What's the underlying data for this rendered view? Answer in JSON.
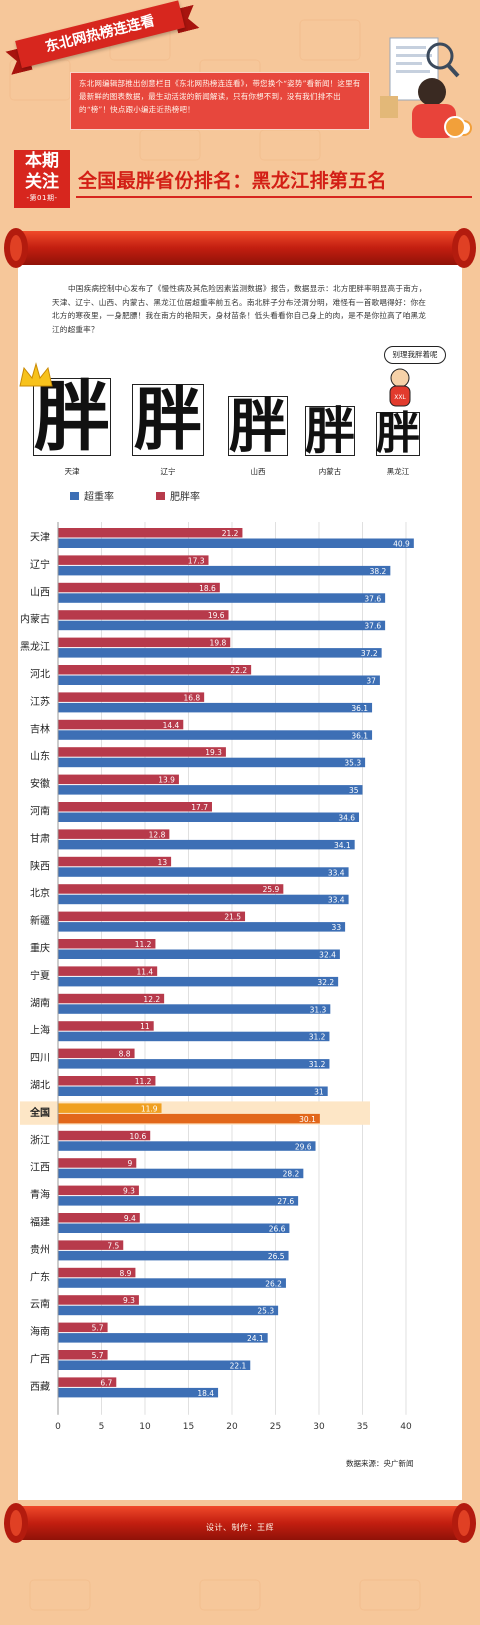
{
  "ribbon": {
    "label": "东北网热榜连连看"
  },
  "intro": {
    "text": "东北网编辑部推出创意栏目《东北网热榜连连看》，带您换个“姿势”看新闻！这里有最新鲜的图表数据，最生动活泼的新闻解读，只有你想不到，没有我们排不出的“榜”！快点跟小编走近热榜吧！"
  },
  "badge": {
    "line1": "本期",
    "line2": "关注",
    "issue": "-第01期-"
  },
  "headline": "全国最胖省份排名：黑龙江排第五名",
  "article": {
    "text": "中国疾病控制中心发布了《慢性病及其危险因素监测数据》报告，数据显示：北方肥胖率明显高于南方，天津、辽宁、山西、内蒙古、黑龙江位居超重率前五名。南北胖子分布泾渭分明，难怪有一首歌唱得好：你在北方的寒夜里，一身肥膘！我在南方的艳阳天，身材苗条！低头看看你自己身上的肉，是不是你拉高了咱黑龙江的超重率？"
  },
  "top5": {
    "character": "胖",
    "speech": "别理我胖着呢",
    "shirt": "XXL",
    "names": [
      "天津",
      "辽宁",
      "山西",
      "内蒙古",
      "黑龙江"
    ]
  },
  "chart_data": {
    "type": "bar",
    "orientation": "horizontal",
    "title": "",
    "xlabel": "",
    "ylabel": "",
    "xlim": [
      0,
      45
    ],
    "xticks": [
      0,
      5,
      10,
      15,
      20,
      25,
      30,
      35,
      40
    ],
    "legend_position": "top-left",
    "highlight_category": "全国",
    "categories": [
      "天津",
      "辽宁",
      "山西",
      "内蒙古",
      "黑龙江",
      "河北",
      "江苏",
      "吉林",
      "山东",
      "安徽",
      "河南",
      "甘肃",
      "陕西",
      "北京",
      "新疆",
      "重庆",
      "宁夏",
      "湖南",
      "上海",
      "四川",
      "湖北",
      "全国",
      "浙江",
      "江西",
      "青海",
      "福建",
      "贵州",
      "广东",
      "云南",
      "海南",
      "广西",
      "西藏"
    ],
    "series": [
      {
        "name": "超重率",
        "color": "#3d6fb5",
        "values": [
          40.9,
          38.2,
          37.6,
          37.6,
          37.2,
          37,
          36.1,
          36.1,
          35.3,
          35,
          34.6,
          34.1,
          33.4,
          33.4,
          33,
          32.4,
          32.2,
          31.3,
          31.2,
          31.2,
          31,
          30.1,
          29.6,
          28.2,
          27.6,
          26.6,
          26.5,
          26.2,
          25.3,
          24.1,
          22.1,
          18.4
        ]
      },
      {
        "name": "肥胖率",
        "color": "#b73a4b",
        "values": [
          21.2,
          17.3,
          18.6,
          19.6,
          19.8,
          22.2,
          16.8,
          14.4,
          19.3,
          13.9,
          17.7,
          12.8,
          13,
          25.9,
          21.5,
          11.2,
          11.4,
          12.2,
          11,
          8.8,
          11.2,
          11.9,
          10.6,
          9,
          9.3,
          9.4,
          7.5,
          8.9,
          9.3,
          5.7,
          5.7,
          6.7
        ]
      }
    ],
    "highlight_colors": {
      "obese": "#f0a020",
      "overweight": "#e2671a"
    }
  },
  "source": "数据来源：央广新闻",
  "credit": "设计、制作：王辉"
}
